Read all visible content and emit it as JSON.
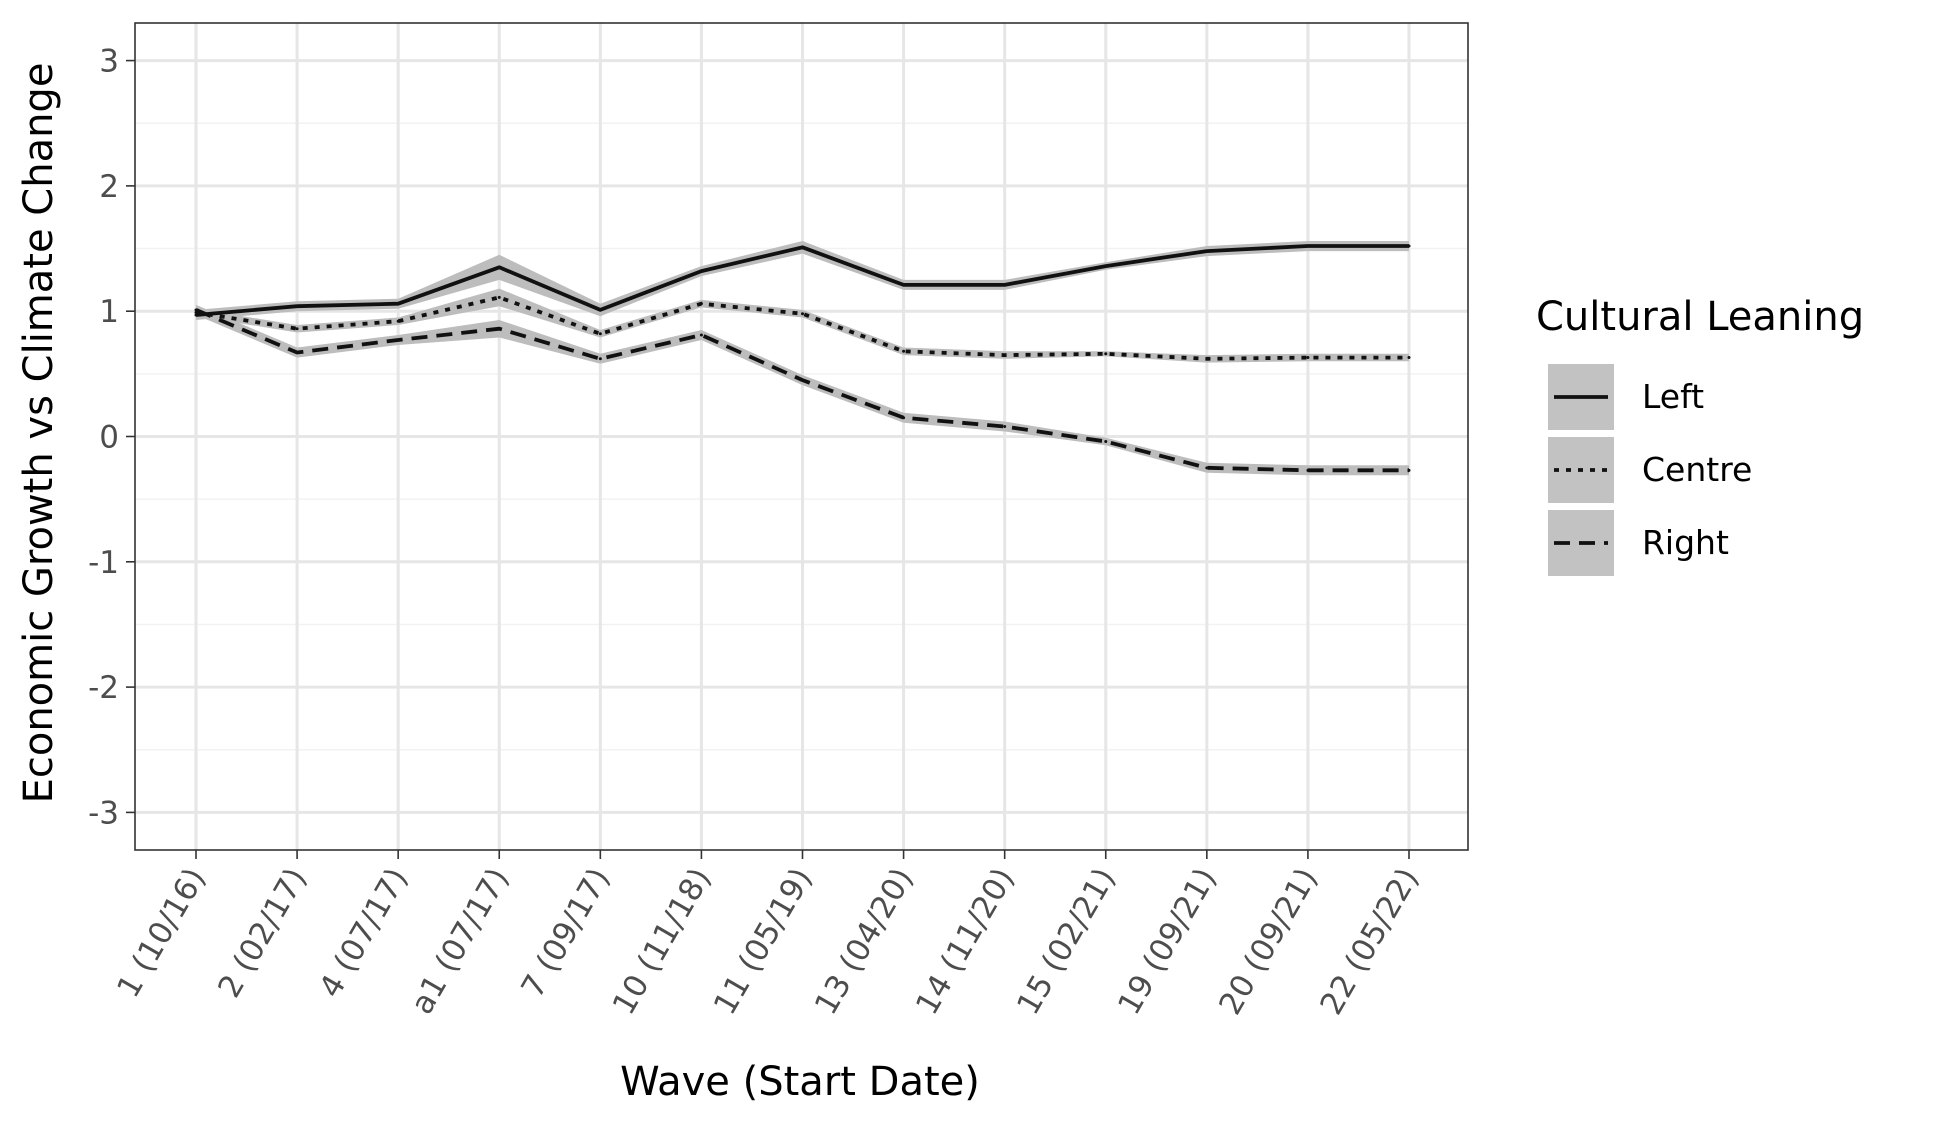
{
  "chart_data": {
    "type": "line",
    "xlabel": "Wave (Start Date)",
    "ylabel": "Economic Growth vs Climate Change",
    "categories": [
      "1 (10/16)",
      "2 (02/17)",
      "4 (07/17)",
      "a1 (07/17)",
      "7 (09/17)",
      "10 (11/18)",
      "11 (05/19)",
      "13 (04/20)",
      "14 (11/20)",
      "15 (02/21)",
      "19 (09/21)",
      "20 (09/21)",
      "22 (05/22)"
    ],
    "ylim": [
      -3.3,
      3.3
    ],
    "yticks": [
      3,
      2,
      1,
      0,
      -1,
      -2,
      -3
    ],
    "ytick_labels": [
      "3",
      "2",
      "1",
      "0",
      "-1",
      "-2",
      "-3"
    ],
    "grid": true,
    "legend": {
      "title": "Cultural Leaning",
      "position": "right"
    },
    "series": [
      {
        "name": "Left",
        "style": "solid",
        "values": [
          0.97,
          1.04,
          1.06,
          1.35,
          1.01,
          1.32,
          1.51,
          1.21,
          1.21,
          1.36,
          1.48,
          1.52,
          1.52
        ],
        "ci_half": [
          0.04,
          0.04,
          0.04,
          0.1,
          0.05,
          0.04,
          0.05,
          0.04,
          0.04,
          0.03,
          0.04,
          0.04,
          0.04
        ]
      },
      {
        "name": "Centre",
        "style": "dotted",
        "values": [
          0.99,
          0.86,
          0.92,
          1.11,
          0.82,
          1.06,
          0.98,
          0.68,
          0.65,
          0.66,
          0.62,
          0.63,
          0.63
        ],
        "ci_half": [
          0.03,
          0.03,
          0.03,
          0.07,
          0.03,
          0.03,
          0.03,
          0.03,
          0.03,
          0.02,
          0.03,
          0.03,
          0.03
        ]
      },
      {
        "name": "Right",
        "style": "dashed",
        "values": [
          1.01,
          0.67,
          0.77,
          0.86,
          0.62,
          0.81,
          0.45,
          0.15,
          0.08,
          -0.04,
          -0.25,
          -0.27,
          -0.27
        ],
        "ci_half": [
          0.04,
          0.04,
          0.04,
          0.07,
          0.04,
          0.04,
          0.04,
          0.04,
          0.04,
          0.03,
          0.04,
          0.04,
          0.04
        ]
      }
    ],
    "colors": {
      "line": "#111111",
      "ribbon": "#bdbdbd",
      "grid_major": "#e6e6e6",
      "grid_minor": "#f2f2f2",
      "panel_border": "#333333",
      "tick_text": "#4d4d4d",
      "legend_key_bg": "#c2c2c2"
    }
  }
}
